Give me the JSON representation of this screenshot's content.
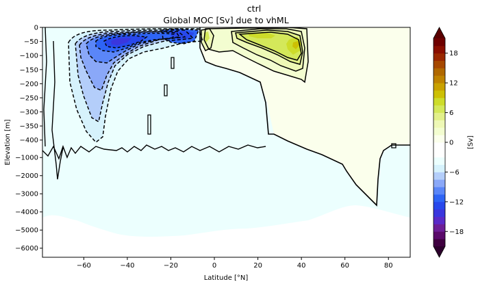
{
  "chart_data": {
    "type": "contourf",
    "suptitle": "ctrl",
    "title": "Global MOC [Sv] due to vhML",
    "xlabel": "Latitude [°N]",
    "ylabel": "Elevation [m]",
    "xlim": [
      -79,
      90
    ],
    "x_ticks": [
      -60,
      -40,
      -20,
      0,
      20,
      40,
      60,
      80
    ],
    "x_tick_labels": [
      "−60",
      "−40",
      "−20",
      "0",
      "20",
      "40",
      "60",
      "80"
    ],
    "y_upper_ticks": [
      0,
      -50,
      -100,
      -150,
      -200,
      -250,
      -300,
      -350,
      -400
    ],
    "y_upper_tick_labels": [
      "0",
      "−50",
      "−100",
      "−150",
      "−200",
      "−250",
      "−300",
      "−350",
      "−400"
    ],
    "y_lower_ticks": [
      -1000,
      -2000,
      -3000,
      -4000,
      -5000,
      -6000
    ],
    "y_lower_tick_labels": [
      "−1000",
      "−2000",
      "−3000",
      "−4000",
      "−5000",
      "−6000"
    ],
    "y_upper_range": [
      -425,
      0
    ],
    "y_lower_range": [
      -6500,
      -425
    ],
    "levels": [
      -21,
      -19.5,
      -18,
      -16.5,
      -15,
      -13.5,
      -12,
      -10.5,
      -9,
      -7.5,
      -6,
      -4.5,
      -3,
      -1.5,
      0,
      1.5,
      3,
      4.5,
      6,
      7.5,
      9,
      10.5,
      12,
      13.5,
      15,
      16.5,
      18,
      19.5,
      21
    ],
    "features": [
      {
        "name": "southern-negative-cell",
        "sign": "negative",
        "lat_range": [
          -70,
          -5
        ],
        "depth_range_m": [
          0,
          -420
        ],
        "min_sv": -13.5,
        "core_lat": -45,
        "core_depth_m": -60
      },
      {
        "name": "equatorial-negative-cell",
        "sign": "negative",
        "lat_range": [
          -25,
          -10
        ],
        "depth_range_m": [
          0,
          -60
        ],
        "min_sv": -9
      },
      {
        "name": "northern-positive-cell",
        "sign": "positive",
        "lat_range": [
          -5,
          45
        ],
        "depth_range_m": [
          0,
          -190
        ],
        "max_sv": 10.5,
        "core_lat": 38,
        "core_depth_m": -55
      }
    ],
    "colorbar": {
      "label": "[Sv]",
      "ticks": [
        -18,
        -12,
        -6,
        0,
        6,
        12,
        18
      ],
      "tick_labels": [
        "−18",
        "−12",
        "−6",
        "0",
        "6",
        "12",
        "18"
      ],
      "range": [
        -21,
        21
      ],
      "extend": "both",
      "colors": [
        "#3f0040",
        "#5a0a6a",
        "#6d1e96",
        "#5a2ac8",
        "#3a36de",
        "#2848ec",
        "#2e64f5",
        "#5a86f8",
        "#8aa8f8",
        "#b4cefa",
        "#d6f2fc",
        "#ecfffe",
        "#ffffff",
        "#ffffff",
        "#fbffec",
        "#f3fdd0",
        "#eef8b6",
        "#e2f08a",
        "#d4e85a",
        "#cddc2a",
        "#cdc004",
        "#c9a100",
        "#be8200",
        "#b06800",
        "#a64800",
        "#9a2800",
        "#8a0e00",
        "#6e0000"
      ]
    }
  }
}
